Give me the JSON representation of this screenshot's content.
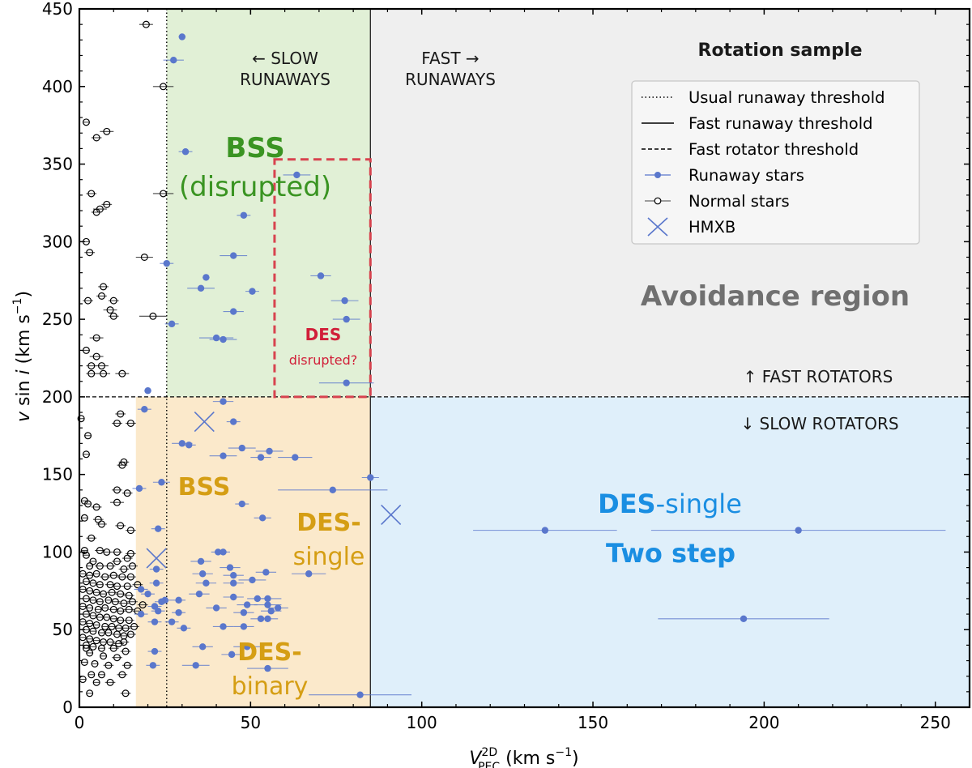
{
  "chart_data": {
    "type": "scatter",
    "title": "Rotation sample",
    "xlabel": {
      "main": "V",
      "sup": "2D",
      "sub": "PEC",
      "units": " (km s",
      "unit_exp": "−1",
      "close": ")"
    },
    "ylabel": {
      "v": "v",
      "mid": " sin ",
      "i": "i",
      "units": " (km s",
      "unit_exp": "−1",
      "close": ")"
    },
    "xlim": [
      0,
      260
    ],
    "ylim": [
      0,
      450
    ],
    "x_ticks": [
      0,
      50,
      100,
      150,
      200,
      250
    ],
    "y_ticks": [
      0,
      50,
      100,
      150,
      200,
      250,
      300,
      350,
      400,
      450
    ],
    "thresholds": {
      "usual_runaway_x": 25.5,
      "fast_runaway_x": 85,
      "fast_rotator_y": 200,
      "bss_lower_edge_x": 16.5
    },
    "colors": {
      "bss_green": "#e1f0d6",
      "bss_orange": "#fbe9cb",
      "avoidance_grey": "#efefef",
      "twostep_blue": "#dfeffa",
      "runaway": "#5a77cc",
      "normal": "#000000",
      "des_box": "#d8434f",
      "label_green": "#3a9422",
      "label_orange": "#d59e14",
      "label_blue": "#1a8ee2",
      "label_grey": "#707070",
      "label_red": "#d11f39"
    },
    "region_labels": {
      "slow_runaways": [
        "← SLOW",
        "RUNAWAYS"
      ],
      "fast_runaways": [
        "FAST →",
        "RUNAWAYS"
      ],
      "fast_rotators": "↑ FAST ROTATORS",
      "slow_rotators": "↓ SLOW ROTATORS",
      "bss_disrupted": [
        "BSS",
        "(disrupted)"
      ],
      "des_disrupted": [
        "DES",
        "disrupted?"
      ],
      "avoidance": "Avoidance region",
      "bss": "BSS",
      "des_single_left": [
        "DES-",
        "single"
      ],
      "des_binary": [
        "DES-",
        "binary"
      ],
      "des_single_right": {
        "bold": "DES",
        "rest": "-single"
      },
      "two_step": "Two step"
    },
    "legend": {
      "placement": "top-right",
      "title": "Rotation sample",
      "entries": [
        {
          "label": "Usual runaway threshold",
          "marker": "dotted-line"
        },
        {
          "label": "Fast runaway threshold",
          "marker": "solid-line"
        },
        {
          "label": "Fast rotator threshold",
          "marker": "dashed-line"
        },
        {
          "label": "Runaway stars",
          "marker": "filled-circle"
        },
        {
          "label": "Normal stars",
          "marker": "open-circle"
        },
        {
          "label": "HMXB",
          "marker": "x-cross"
        }
      ]
    },
    "series": [
      {
        "name": "Runaway stars",
        "points": [
          [
            30,
            432,
            1
          ],
          [
            27.5,
            417,
            3
          ],
          [
            31,
            358,
            2
          ],
          [
            63.5,
            343,
            4
          ],
          [
            48,
            317,
            2
          ],
          [
            45,
            291,
            4
          ],
          [
            25.5,
            286,
            2
          ],
          [
            37,
            277,
            1
          ],
          [
            70.5,
            278,
            3
          ],
          [
            35.5,
            270,
            4
          ],
          [
            50.5,
            268,
            2
          ],
          [
            77.5,
            262,
            4
          ],
          [
            45,
            255,
            3
          ],
          [
            78,
            250,
            4
          ],
          [
            27,
            247,
            2
          ],
          [
            40,
            238,
            5
          ],
          [
            42,
            237,
            4
          ],
          [
            78,
            209,
            8
          ],
          [
            20,
            204,
            1
          ],
          [
            42,
            197,
            3
          ],
          [
            19,
            192,
            2
          ],
          [
            45,
            184,
            2
          ],
          [
            30,
            170,
            3
          ],
          [
            32,
            169,
            2
          ],
          [
            47.5,
            167,
            4
          ],
          [
            55.5,
            165,
            4
          ],
          [
            53,
            161,
            3
          ],
          [
            63,
            161,
            5
          ],
          [
            42,
            162,
            4
          ],
          [
            85,
            148,
            2.5
          ],
          [
            24,
            145,
            2.5
          ],
          [
            17.5,
            141,
            2
          ],
          [
            74,
            140,
            16
          ],
          [
            47.5,
            131,
            2
          ],
          [
            53.5,
            122,
            2.5
          ],
          [
            136,
            114,
            21
          ],
          [
            210,
            114,
            43
          ],
          [
            23,
            115,
            2
          ],
          [
            40.5,
            100,
            2
          ],
          [
            42,
            100,
            2
          ],
          [
            35.5,
            94,
            3
          ],
          [
            44,
            90,
            3
          ],
          [
            22.5,
            89,
            2
          ],
          [
            36,
            86,
            3
          ],
          [
            45,
            85,
            3
          ],
          [
            54.5,
            87,
            3
          ],
          [
            67,
            86,
            5
          ],
          [
            50.5,
            82,
            4
          ],
          [
            37,
            80,
            3
          ],
          [
            45,
            80,
            3
          ],
          [
            22.5,
            80,
            2
          ],
          [
            18,
            76,
            2
          ],
          [
            20,
            73,
            2
          ],
          [
            35,
            73,
            3
          ],
          [
            45,
            71,
            3
          ],
          [
            25,
            69,
            2
          ],
          [
            29,
            69,
            2
          ],
          [
            24,
            68,
            2
          ],
          [
            52,
            70,
            3
          ],
          [
            55,
            70,
            4
          ],
          [
            22,
            65,
            2
          ],
          [
            49,
            66,
            3
          ],
          [
            55,
            66,
            4
          ],
          [
            40,
            64,
            3
          ],
          [
            58,
            64,
            3
          ],
          [
            23,
            62,
            2
          ],
          [
            29,
            61,
            2
          ],
          [
            48,
            61,
            3
          ],
          [
            56,
            62,
            3
          ],
          [
            53,
            57,
            3
          ],
          [
            55,
            57,
            3
          ],
          [
            18,
            60,
            2
          ],
          [
            22,
            55,
            2
          ],
          [
            27,
            55,
            2
          ],
          [
            42,
            52,
            3
          ],
          [
            48,
            52,
            3
          ],
          [
            30.5,
            51,
            2
          ],
          [
            194,
            57,
            25
          ],
          [
            36,
            39,
            3
          ],
          [
            49,
            39,
            4
          ],
          [
            22,
            36,
            2
          ],
          [
            44.5,
            34,
            3
          ],
          [
            21.5,
            27,
            2
          ],
          [
            34,
            27,
            4
          ],
          [
            55,
            25,
            6
          ],
          [
            82,
            8,
            15
          ]
        ]
      },
      {
        "name": "Normal stars",
        "points": [
          [
            19.5,
            440,
            2
          ],
          [
            24.5,
            400,
            3
          ],
          [
            2,
            377,
            1
          ],
          [
            8,
            371,
            2
          ],
          [
            5,
            367,
            1.5
          ],
          [
            24.5,
            331,
            3
          ],
          [
            3.5,
            331,
            1.5
          ],
          [
            8,
            324,
            1.5
          ],
          [
            6,
            321,
            2
          ],
          [
            5,
            319,
            1.5
          ],
          [
            2,
            300,
            1
          ],
          [
            3,
            293,
            1.5
          ],
          [
            19,
            290,
            2.5
          ],
          [
            7,
            271,
            1.5
          ],
          [
            6.5,
            265,
            1.5
          ],
          [
            2.5,
            262,
            1.5
          ],
          [
            10,
            262,
            1.5
          ],
          [
            9,
            256,
            2
          ],
          [
            10,
            252,
            1.5
          ],
          [
            21.5,
            252,
            4
          ],
          [
            5,
            238,
            2
          ],
          [
            2,
            230,
            1
          ],
          [
            5,
            226,
            2
          ],
          [
            6.5,
            220,
            2
          ],
          [
            3.5,
            220,
            1.5
          ],
          [
            12.5,
            215,
            2
          ],
          [
            3.5,
            215,
            1.5
          ],
          [
            7,
            215,
            2
          ],
          [
            0.5,
            186,
            1
          ],
          [
            12,
            189,
            1.5
          ],
          [
            11,
            183,
            1.5
          ],
          [
            15,
            183,
            1.5
          ],
          [
            2.5,
            175,
            1
          ],
          [
            2,
            163,
            1
          ],
          [
            13,
            158,
            1.5
          ],
          [
            12.5,
            156,
            1.5
          ],
          [
            11,
            140,
            1.5
          ],
          [
            1.5,
            133,
            1
          ],
          [
            2.5,
            131,
            1
          ],
          [
            11,
            132,
            2
          ],
          [
            14,
            138,
            1.5
          ],
          [
            5,
            129,
            1.5
          ],
          [
            1.5,
            122,
            1
          ],
          [
            5.5,
            121,
            1.5
          ],
          [
            6.5,
            118,
            1.5
          ],
          [
            12,
            117,
            1.5
          ],
          [
            15,
            114,
            1.5
          ],
          [
            3.5,
            109,
            1.5
          ],
          [
            1.5,
            101,
            1
          ],
          [
            6,
            101,
            1.5
          ],
          [
            8,
            100,
            1.5
          ],
          [
            11,
            100,
            1.5
          ],
          [
            15,
            99,
            1.5
          ],
          [
            2,
            98,
            1
          ],
          [
            4,
            94,
            1
          ],
          [
            11,
            94,
            1.5
          ],
          [
            14,
            96,
            1.5
          ],
          [
            3,
            91,
            1
          ],
          [
            6,
            91,
            1.5
          ],
          [
            9,
            91,
            1.5
          ],
          [
            13,
            89,
            1.5
          ],
          [
            15.5,
            91,
            1.5
          ],
          [
            1,
            86,
            1
          ],
          [
            3,
            85,
            1
          ],
          [
            5,
            86,
            1
          ],
          [
            7.5,
            84,
            1.5
          ],
          [
            10,
            85,
            1.5
          ],
          [
            12.5,
            84,
            1.5
          ],
          [
            15,
            84,
            1.5
          ],
          [
            2,
            81,
            1
          ],
          [
            4,
            80,
            1
          ],
          [
            6,
            79,
            1
          ],
          [
            9,
            79,
            1.5
          ],
          [
            11,
            78,
            1.5
          ],
          [
            14,
            78,
            1.5
          ],
          [
            17,
            79,
            1.5
          ],
          [
            1,
            76,
            1
          ],
          [
            3,
            75,
            1
          ],
          [
            5,
            74,
            1
          ],
          [
            7,
            73,
            1
          ],
          [
            9.5,
            74,
            1.5
          ],
          [
            12,
            73,
            1.5
          ],
          [
            14.5,
            72,
            1.5
          ],
          [
            2,
            70,
            1
          ],
          [
            4,
            69,
            1
          ],
          [
            6,
            68,
            1
          ],
          [
            8.5,
            69,
            1
          ],
          [
            10.5,
            68,
            1.5
          ],
          [
            13,
            67,
            1.5
          ],
          [
            15.5,
            68,
            1.5
          ],
          [
            18.5,
            66,
            1.5
          ],
          [
            1,
            65,
            1
          ],
          [
            3,
            64,
            1
          ],
          [
            5.5,
            63,
            1
          ],
          [
            7.5,
            64,
            1
          ],
          [
            10,
            63,
            1.5
          ],
          [
            12,
            62,
            1.5
          ],
          [
            14.5,
            63,
            1.5
          ],
          [
            17,
            62,
            1.5
          ],
          [
            2,
            60,
            1
          ],
          [
            4,
            59,
            1
          ],
          [
            6,
            58,
            1
          ],
          [
            8,
            58,
            1
          ],
          [
            10,
            57,
            1.5
          ],
          [
            12,
            56,
            1.5
          ],
          [
            14.5,
            56,
            1.5
          ],
          [
            1,
            55,
            1
          ],
          [
            3,
            54,
            1
          ],
          [
            5,
            53,
            1
          ],
          [
            7.5,
            52,
            1
          ],
          [
            9.5,
            52,
            1.5
          ],
          [
            11.5,
            51,
            1.5
          ],
          [
            13.5,
            51,
            1.5
          ],
          [
            16,
            52,
            1.5
          ],
          [
            2,
            50,
            1
          ],
          [
            4,
            49,
            1
          ],
          [
            6.5,
            48,
            1
          ],
          [
            8.5,
            48,
            1
          ],
          [
            11,
            47,
            1.5
          ],
          [
            13,
            46,
            1.5
          ],
          [
            15,
            47,
            1.5
          ],
          [
            1,
            45,
            1
          ],
          [
            3,
            44,
            1
          ],
          [
            5,
            43,
            1
          ],
          [
            7,
            42,
            1
          ],
          [
            9,
            42,
            1.5
          ],
          [
            11.5,
            41,
            1.5
          ],
          [
            13,
            42,
            1.5
          ],
          [
            2,
            40,
            1
          ],
          [
            4,
            39,
            1
          ],
          [
            6.5,
            38,
            1
          ],
          [
            10,
            38,
            1.5
          ],
          [
            13.5,
            36,
            1.5
          ],
          [
            3,
            35,
            1
          ],
          [
            7,
            33,
            1
          ],
          [
            11,
            32,
            1.5
          ],
          [
            1.5,
            29,
            1
          ],
          [
            4.5,
            28,
            1
          ],
          [
            8.5,
            27,
            1.5
          ],
          [
            14,
            27,
            1.5
          ],
          [
            3.5,
            21,
            1
          ],
          [
            6.5,
            21,
            1
          ],
          [
            12.5,
            21,
            1.5
          ],
          [
            1,
            18,
            1
          ],
          [
            5,
            16,
            1
          ],
          [
            9,
            16,
            1.5
          ],
          [
            3,
            9,
            1
          ],
          [
            13.5,
            9,
            1.5
          ],
          [
            2,
            38,
            1
          ]
        ]
      },
      {
        "name": "HMXB",
        "points": [
          [
            36.5,
            184
          ],
          [
            91,
            124
          ],
          [
            22.5,
            96
          ]
        ]
      }
    ]
  }
}
